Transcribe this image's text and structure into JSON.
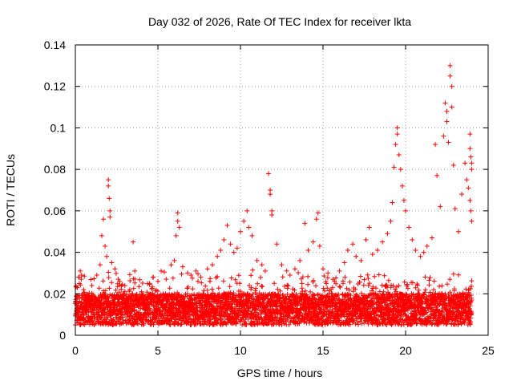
{
  "chart_data": {
    "type": "scatter",
    "title": "Day 032 of 2026, Rate Of TEC Index for receiver lkta",
    "xlabel": "GPS time / hours",
    "ylabel": "ROTI / TECUs",
    "xlim": [
      0,
      25
    ],
    "ylim": [
      0,
      0.14
    ],
    "xticks": [
      {
        "value": 0,
        "label": "0"
      },
      {
        "value": 5,
        "label": "5"
      },
      {
        "value": 10,
        "label": "10"
      },
      {
        "value": 15,
        "label": "15"
      },
      {
        "value": 20,
        "label": "20"
      },
      {
        "value": 25,
        "label": "25"
      }
    ],
    "yticks": [
      {
        "value": 0,
        "label": "0"
      },
      {
        "value": 0.02,
        "label": "0.02"
      },
      {
        "value": 0.04,
        "label": "0.04"
      },
      {
        "value": 0.06,
        "label": "0.06"
      },
      {
        "value": 0.08,
        "label": "0.08"
      },
      {
        "value": 0.1,
        "label": "0.1"
      },
      {
        "value": 0.12,
        "label": "0.12"
      },
      {
        "value": 0.14,
        "label": "0.14"
      }
    ],
    "grid": true,
    "legend": "none",
    "marker": "plus",
    "color": "#ff0000",
    "band_approx": {
      "x_start": 0,
      "x_end": 24,
      "y_low": 0.005,
      "y_high": 0.02
    },
    "series": [
      {
        "name": "ROTI",
        "points": [
          [
            0.1,
            0.013
          ],
          [
            0.2,
            0.028
          ],
          [
            0.3,
            0.031
          ],
          [
            0.5,
            0.022
          ],
          [
            0.8,
            0.019
          ],
          [
            1.0,
            0.024
          ],
          [
            1.3,
            0.029
          ],
          [
            1.5,
            0.034
          ],
          [
            1.6,
            0.048
          ],
          [
            1.7,
            0.056
          ],
          [
            1.8,
            0.043
          ],
          [
            1.9,
            0.038
          ],
          [
            2.0,
            0.075
          ],
          [
            2.0,
            0.072
          ],
          [
            2.05,
            0.066
          ],
          [
            2.1,
            0.06
          ],
          [
            2.1,
            0.057
          ],
          [
            2.2,
            0.035
          ],
          [
            2.4,
            0.032
          ],
          [
            2.6,
            0.027
          ],
          [
            3.0,
            0.024
          ],
          [
            3.3,
            0.022
          ],
          [
            3.5,
            0.045
          ],
          [
            3.6,
            0.031
          ],
          [
            4.0,
            0.021
          ],
          [
            4.5,
            0.025
          ],
          [
            4.7,
            0.028
          ],
          [
            5.0,
            0.026
          ],
          [
            5.2,
            0.031
          ],
          [
            5.5,
            0.027
          ],
          [
            5.8,
            0.034
          ],
          [
            6.0,
            0.036
          ],
          [
            6.1,
            0.048
          ],
          [
            6.2,
            0.059
          ],
          [
            6.2,
            0.055
          ],
          [
            6.3,
            0.052
          ],
          [
            6.5,
            0.033
          ],
          [
            6.8,
            0.03
          ],
          [
            7.0,
            0.029
          ],
          [
            7.3,
            0.031
          ],
          [
            7.6,
            0.028
          ],
          [
            8.0,
            0.032
          ],
          [
            8.3,
            0.034
          ],
          [
            8.6,
            0.038
          ],
          [
            8.8,
            0.041
          ],
          [
            9.0,
            0.046
          ],
          [
            9.2,
            0.053
          ],
          [
            9.4,
            0.044
          ],
          [
            9.6,
            0.04
          ],
          [
            9.8,
            0.042
          ],
          [
            10.0,
            0.05
          ],
          [
            10.2,
            0.055
          ],
          [
            10.4,
            0.06
          ],
          [
            10.5,
            0.052
          ],
          [
            10.7,
            0.048
          ],
          [
            11.0,
            0.036
          ],
          [
            11.3,
            0.034
          ],
          [
            11.5,
            0.031
          ],
          [
            11.7,
            0.078
          ],
          [
            11.8,
            0.07
          ],
          [
            11.8,
            0.068
          ],
          [
            11.9,
            0.06
          ],
          [
            11.9,
            0.058
          ],
          [
            12.2,
            0.044
          ],
          [
            12.5,
            0.034
          ],
          [
            12.8,
            0.031
          ],
          [
            13.0,
            0.029
          ],
          [
            13.3,
            0.032
          ],
          [
            13.6,
            0.036
          ],
          [
            13.9,
            0.054
          ],
          [
            14.1,
            0.041
          ],
          [
            14.4,
            0.045
          ],
          [
            14.6,
            0.056
          ],
          [
            14.7,
            0.059
          ],
          [
            14.8,
            0.043
          ],
          [
            15.0,
            0.032
          ],
          [
            15.3,
            0.03
          ],
          [
            15.6,
            0.027
          ],
          [
            16.0,
            0.031
          ],
          [
            16.3,
            0.035
          ],
          [
            16.5,
            0.041
          ],
          [
            16.8,
            0.044
          ],
          [
            17.0,
            0.038
          ],
          [
            17.3,
            0.036
          ],
          [
            17.6,
            0.046
          ],
          [
            17.8,
            0.052
          ],
          [
            18.0,
            0.039
          ],
          [
            18.3,
            0.041
          ],
          [
            18.6,
            0.045
          ],
          [
            18.9,
            0.049
          ],
          [
            19.1,
            0.055
          ],
          [
            19.2,
            0.064
          ],
          [
            19.3,
            0.081
          ],
          [
            19.4,
            0.092
          ],
          [
            19.5,
            0.1
          ],
          [
            19.5,
            0.097
          ],
          [
            19.6,
            0.087
          ],
          [
            19.7,
            0.08
          ],
          [
            19.8,
            0.072
          ],
          [
            19.9,
            0.065
          ],
          [
            20.0,
            0.06
          ],
          [
            20.2,
            0.052
          ],
          [
            20.4,
            0.046
          ],
          [
            20.6,
            0.041
          ],
          [
            20.9,
            0.038
          ],
          [
            21.1,
            0.04
          ],
          [
            21.3,
            0.043
          ],
          [
            21.6,
            0.047
          ],
          [
            21.8,
            0.092
          ],
          [
            21.9,
            0.077
          ],
          [
            22.1,
            0.062
          ],
          [
            22.3,
            0.096
          ],
          [
            22.4,
            0.112
          ],
          [
            22.5,
            0.108
          ],
          [
            22.5,
            0.103
          ],
          [
            22.6,
            0.093
          ],
          [
            22.7,
            0.13
          ],
          [
            22.7,
            0.125
          ],
          [
            22.8,
            0.12
          ],
          [
            22.8,
            0.11
          ],
          [
            22.9,
            0.082
          ],
          [
            23.0,
            0.061
          ],
          [
            23.2,
            0.05
          ],
          [
            23.4,
            0.068
          ],
          [
            23.6,
            0.083
          ],
          [
            23.7,
            0.075
          ],
          [
            23.8,
            0.071
          ],
          [
            23.9,
            0.097
          ],
          [
            23.9,
            0.09
          ],
          [
            23.95,
            0.086
          ],
          [
            24.0,
            0.083
          ],
          [
            24.0,
            0.08
          ],
          [
            23.9,
            0.065
          ],
          [
            23.95,
            0.06
          ],
          [
            24.0,
            0.055
          ]
        ]
      }
    ]
  }
}
